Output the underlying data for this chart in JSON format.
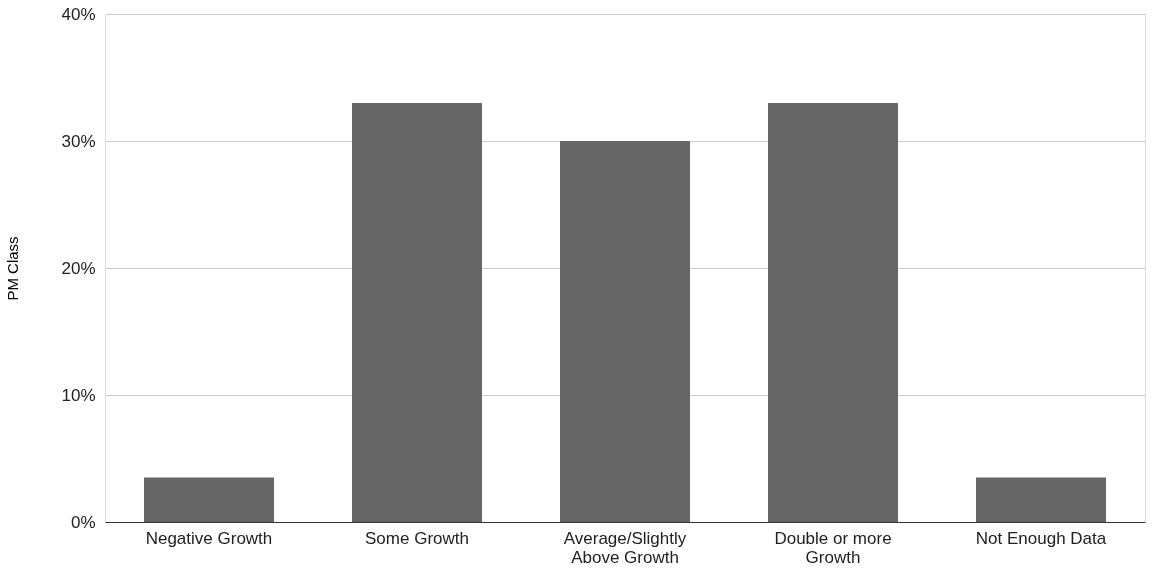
{
  "chart_data": {
    "type": "bar",
    "ylabel": "PM Class",
    "categories": [
      "Negative Growth",
      "Some Growth",
      "Average/Slightly Above Growth",
      "Double or more Growth",
      "Not Enough Data"
    ],
    "values": [
      3.5,
      33,
      30,
      33,
      3.5
    ],
    "color": "#666666",
    "ylim": [
      0,
      40
    ],
    "yticks": [
      {
        "value": 0,
        "label": "0%"
      },
      {
        "value": 10,
        "label": "10%"
      },
      {
        "value": 20,
        "label": "20%"
      },
      {
        "value": 30,
        "label": "30%"
      },
      {
        "value": 40,
        "label": "40%"
      }
    ],
    "grid": "y"
  }
}
